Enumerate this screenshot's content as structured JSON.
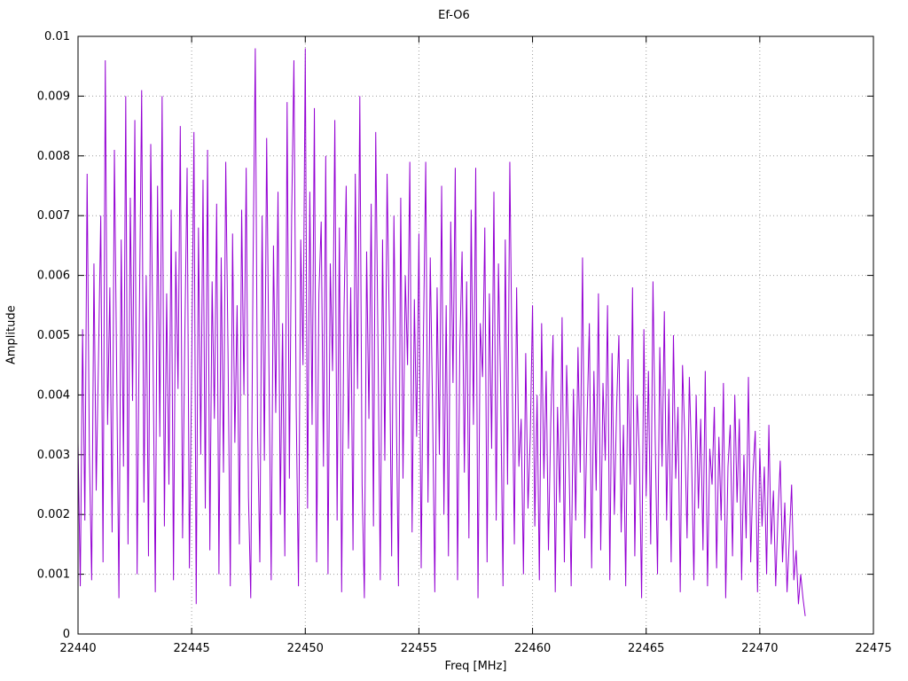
{
  "chart_data": {
    "type": "line",
    "title": "Ef-O6",
    "xlabel": "Freq [MHz]",
    "ylabel": "Amplitude",
    "xlim": [
      22440,
      22475
    ],
    "ylim": [
      0,
      0.01
    ],
    "x_ticks": [
      22440,
      22445,
      22450,
      22455,
      22460,
      22465,
      22470,
      22475
    ],
    "x_tick_labels": [
      "22440",
      "22445",
      "22450",
      "22455",
      "22460",
      "22465",
      "22470",
      "22475"
    ],
    "y_ticks": [
      0,
      0.001,
      0.002,
      0.003,
      0.004,
      0.005,
      0.006,
      0.007,
      0.008,
      0.009,
      0.01
    ],
    "y_tick_labels": [
      "0",
      "0.001",
      "0.002",
      "0.003",
      "0.004",
      "0.005",
      "0.006",
      "0.007",
      "0.008",
      "0.009",
      "0.01"
    ],
    "grid": true,
    "legend": "none",
    "line_color": "#9400d3",
    "grid_color": "#9c9c9c",
    "frame_color": "#000000",
    "x_start": 22440.0,
    "x_step": 0.1,
    "amp_scale": 0.0001,
    "values": [
      32,
      8,
      51,
      19,
      77,
      30,
      9,
      62,
      24,
      46,
      70,
      12,
      96,
      35,
      58,
      17,
      81,
      44,
      6,
      66,
      28,
      90,
      15,
      73,
      39,
      86,
      10,
      54,
      91,
      22,
      60,
      13,
      82,
      47,
      7,
      75,
      33,
      90,
      18,
      57,
      25,
      71,
      9,
      64,
      41,
      85,
      16,
      50,
      78,
      11,
      44,
      84,
      5,
      68,
      30,
      76,
      21,
      81,
      14,
      59,
      36,
      72,
      10,
      63,
      27,
      79,
      47,
      8,
      67,
      32,
      55,
      15,
      71,
      40,
      78,
      23,
      6,
      61,
      98,
      34,
      12,
      70,
      29,
      83,
      45,
      9,
      65,
      37,
      74,
      20,
      52,
      13,
      89,
      26,
      70,
      96,
      38,
      8,
      66,
      45,
      98,
      21,
      74,
      35,
      88,
      12,
      57,
      69,
      28,
      80,
      10,
      62,
      44,
      86,
      19,
      68,
      7,
      53,
      75,
      31,
      58,
      14,
      77,
      41,
      90,
      25,
      6,
      64,
      36,
      72,
      18,
      84,
      48,
      9,
      66,
      29,
      77,
      51,
      13,
      70,
      39,
      8,
      73,
      26,
      60,
      45,
      79,
      17,
      56,
      33,
      67,
      11,
      50,
      79,
      22,
      63,
      38,
      7,
      58,
      30,
      75,
      20,
      55,
      13,
      69,
      42,
      78,
      9,
      48,
      64,
      27,
      59,
      16,
      71,
      35,
      78,
      6,
      52,
      43,
      68,
      12,
      57,
      31,
      74,
      19,
      62,
      40,
      8,
      66,
      25,
      79,
      45,
      15,
      58,
      28,
      36,
      10,
      47,
      21,
      33,
      55,
      18,
      40,
      9,
      52,
      26,
      44,
      14,
      35,
      50,
      7,
      38,
      22,
      53,
      12,
      45,
      30,
      8,
      41,
      19,
      48,
      27,
      63,
      16,
      36,
      52,
      11,
      44,
      24,
      57,
      14,
      42,
      29,
      55,
      9,
      47,
      20,
      38,
      50,
      17,
      35,
      8,
      46,
      25,
      58,
      13,
      40,
      30,
      6,
      51,
      23,
      44,
      15,
      59,
      32,
      10,
      48,
      28,
      54,
      19,
      41,
      12,
      50,
      26,
      38,
      7,
      45,
      33,
      16,
      43,
      29,
      9,
      40,
      21,
      36,
      14,
      44,
      8,
      31,
      25,
      38,
      11,
      33,
      19,
      42,
      6,
      28,
      35,
      13,
      40,
      22,
      36,
      9,
      30,
      16,
      43,
      12,
      27,
      34,
      7,
      31,
      18,
      28,
      10,
      35,
      15,
      24,
      8,
      20,
      29,
      12,
      22,
      7,
      16,
      25,
      9,
      14,
      5,
      10,
      6,
      3
    ]
  }
}
